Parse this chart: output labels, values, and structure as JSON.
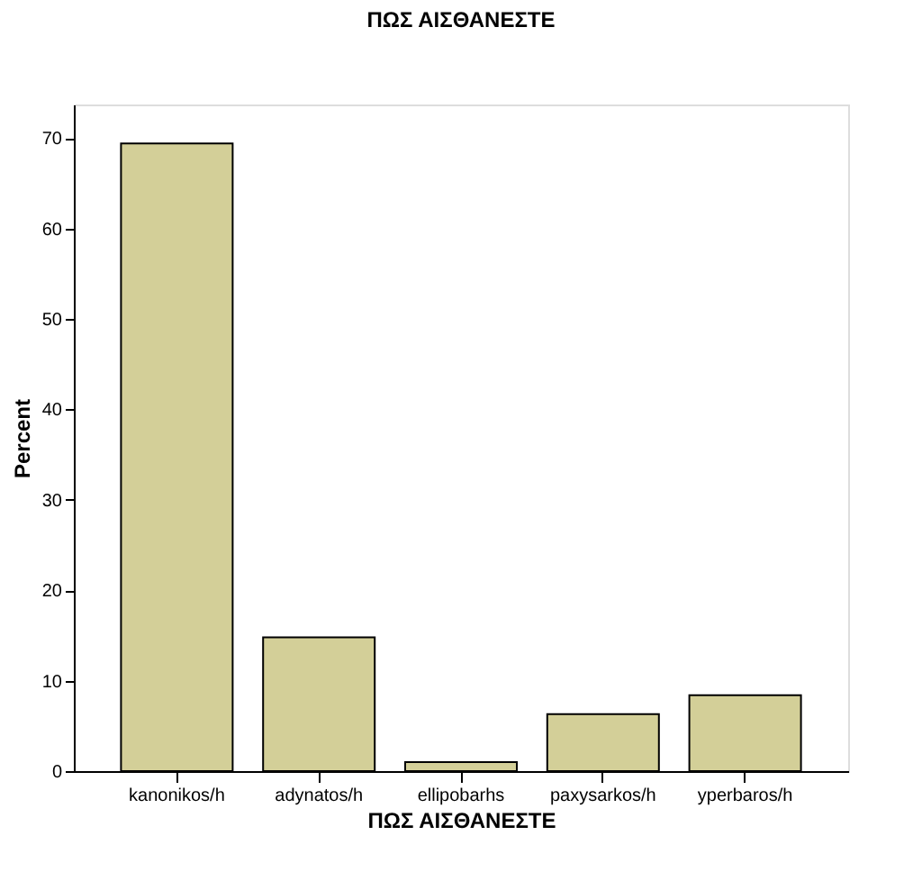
{
  "chart_data": {
    "type": "bar",
    "title": "ΠΩΣ ΑΙΣΘΑΝΕΣΤΕ",
    "xlabel": "ΠΩΣ ΑΙΣΘΑΝΕΣΤΕ",
    "ylabel": "Percent",
    "categories": [
      "kanonikos/h",
      "adynatos/h",
      "ellipobarhs",
      "paxysarkos/h",
      "yperbaros/h"
    ],
    "values": [
      69.4,
      14.8,
      1.0,
      6.3,
      8.4
    ],
    "color": "#d3cf98",
    "ylim": [
      0,
      73.7
    ],
    "yticks": [
      0,
      10,
      20,
      30,
      40,
      50,
      60,
      70
    ],
    "grid": false
  }
}
